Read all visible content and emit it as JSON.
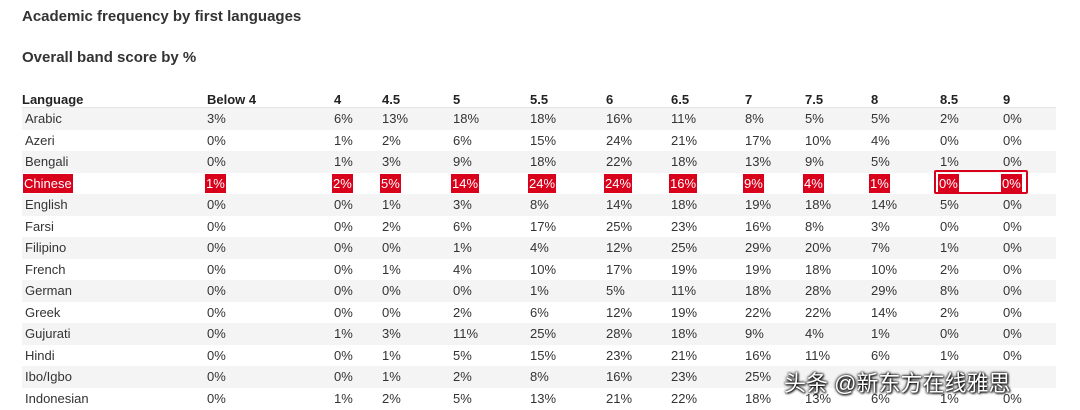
{
  "title": "Academic frequency by first languages",
  "subtitle": "Overall band score by %",
  "table": {
    "headers": [
      "Language",
      "Below 4",
      "4",
      "4.5",
      "5",
      "5.5",
      "6",
      "6.5",
      "7",
      "7.5",
      "8",
      "8.5",
      "9"
    ],
    "rows": [
      {
        "language": "Arabic",
        "values": [
          "3%",
          "6%",
          "13%",
          "18%",
          "18%",
          "16%",
          "11%",
          "8%",
          "5%",
          "5%",
          "2%",
          "0%"
        ]
      },
      {
        "language": "Azeri",
        "values": [
          "0%",
          "1%",
          "2%",
          "6%",
          "15%",
          "24%",
          "21%",
          "17%",
          "10%",
          "4%",
          "0%",
          "0%"
        ]
      },
      {
        "language": "Bengali",
        "values": [
          "0%",
          "1%",
          "3%",
          "9%",
          "18%",
          "22%",
          "18%",
          "13%",
          "9%",
          "5%",
          "1%",
          "0%"
        ]
      },
      {
        "language": "Chinese",
        "values": [
          "1%",
          "2%",
          "5%",
          "14%",
          "24%",
          "24%",
          "16%",
          "9%",
          "4%",
          "1%",
          "0%",
          "0%"
        ],
        "highlight": true
      },
      {
        "language": "English",
        "values": [
          "0%",
          "0%",
          "1%",
          "3%",
          "8%",
          "14%",
          "18%",
          "19%",
          "18%",
          "14%",
          "5%",
          "0%"
        ]
      },
      {
        "language": "Farsi",
        "values": [
          "0%",
          "0%",
          "2%",
          "6%",
          "17%",
          "25%",
          "23%",
          "16%",
          "8%",
          "3%",
          "0%",
          "0%"
        ]
      },
      {
        "language": "Filipino",
        "values": [
          "0%",
          "0%",
          "0%",
          "1%",
          "4%",
          "12%",
          "25%",
          "29%",
          "20%",
          "7%",
          "1%",
          "0%"
        ]
      },
      {
        "language": "French",
        "values": [
          "0%",
          "0%",
          "1%",
          "4%",
          "10%",
          "17%",
          "19%",
          "19%",
          "18%",
          "10%",
          "2%",
          "0%"
        ]
      },
      {
        "language": "German",
        "values": [
          "0%",
          "0%",
          "0%",
          "0%",
          "1%",
          "5%",
          "11%",
          "18%",
          "28%",
          "29%",
          "8%",
          "0%"
        ]
      },
      {
        "language": "Greek",
        "values": [
          "0%",
          "0%",
          "0%",
          "2%",
          "6%",
          "12%",
          "19%",
          "22%",
          "22%",
          "14%",
          "2%",
          "0%"
        ]
      },
      {
        "language": "Gujurati",
        "values": [
          "0%",
          "1%",
          "3%",
          "11%",
          "25%",
          "28%",
          "18%",
          "9%",
          "4%",
          "1%",
          "0%",
          "0%"
        ]
      },
      {
        "language": "Hindi",
        "values": [
          "0%",
          "0%",
          "1%",
          "5%",
          "15%",
          "23%",
          "21%",
          "16%",
          "11%",
          "6%",
          "1%",
          "0%"
        ]
      },
      {
        "language": "Ibo/Igbo",
        "values": [
          "0%",
          "0%",
          "1%",
          "2%",
          "8%",
          "16%",
          "23%",
          "25%",
          "",
          "",
          "",
          ""
        ]
      },
      {
        "language": "Indonesian",
        "values": [
          "0%",
          "1%",
          "2%",
          "5%",
          "13%",
          "21%",
          "22%",
          "18%",
          "13%",
          "6%",
          "1%",
          "0%"
        ]
      }
    ]
  },
  "watermark": "头条 @新东方在线雅思",
  "accent_color": "#d9001b"
}
